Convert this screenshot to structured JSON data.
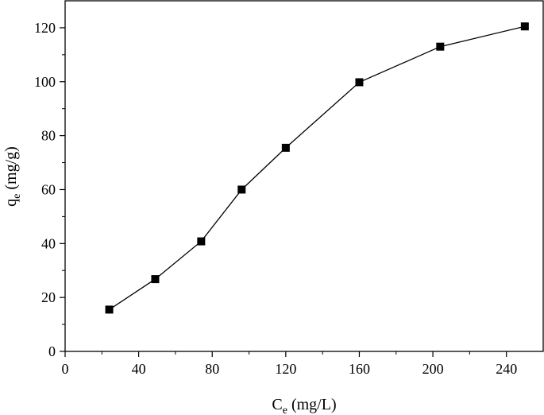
{
  "chart_data": {
    "type": "line",
    "title": "",
    "xlabel": {
      "main": "C",
      "sub": "e",
      "unit": " (mg/L)"
    },
    "ylabel": {
      "main": "q",
      "sub": "e",
      "unit": " (mg/g)"
    },
    "xlim": [
      0,
      260
    ],
    "ylim": [
      0,
      130
    ],
    "x_ticks": [
      0,
      40,
      80,
      120,
      160,
      200,
      240
    ],
    "y_ticks": [
      0,
      20,
      40,
      60,
      80,
      100,
      120
    ],
    "grid": false,
    "legend": "none",
    "marker": "square",
    "series": [
      {
        "x": [
          24,
          49,
          74,
          96,
          120,
          160,
          204,
          250
        ],
        "y": [
          15.5,
          26.8,
          40.8,
          60.0,
          75.5,
          99.8,
          113.0,
          120.5
        ]
      }
    ]
  }
}
